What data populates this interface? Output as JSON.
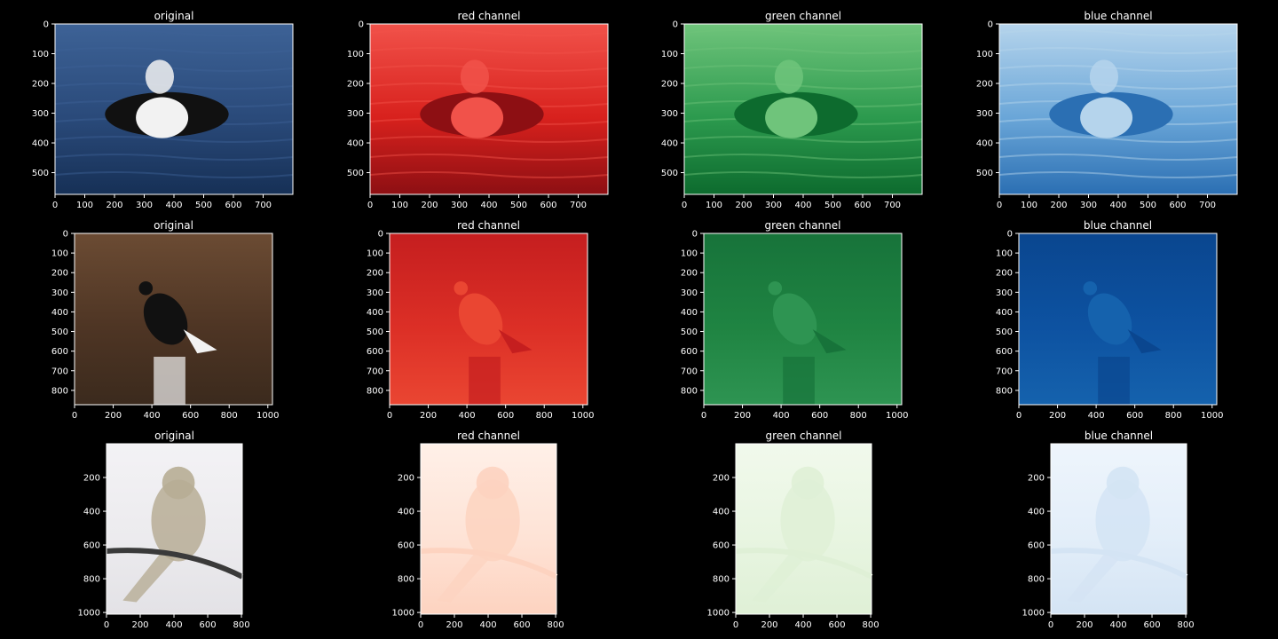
{
  "figure": {
    "background": "#000000",
    "rows": [
      {
        "subject": "duck",
        "x_ticks": [
          "0",
          "100",
          "200",
          "300",
          "400",
          "500",
          "600",
          "700"
        ],
        "y_ticks": [
          "0",
          "100",
          "200",
          "300",
          "400",
          "500"
        ],
        "x_max": 800,
        "y_max": 573,
        "panels": [
          {
            "title": "original",
            "channel": "original"
          },
          {
            "title": "red channel",
            "channel": "red"
          },
          {
            "title": "green channel",
            "channel": "green"
          },
          {
            "title": "blue channel",
            "channel": "blue"
          }
        ]
      },
      {
        "subject": "hawk",
        "x_ticks": [
          "0",
          "200",
          "400",
          "600",
          "800",
          "1000"
        ],
        "y_ticks": [
          "0",
          "100",
          "200",
          "300",
          "400",
          "500",
          "600",
          "700",
          "800"
        ],
        "x_max": 1024,
        "y_max": 873,
        "panels": [
          {
            "title": "original",
            "channel": "original"
          },
          {
            "title": "red channel",
            "channel": "red"
          },
          {
            "title": "green channel",
            "channel": "green"
          },
          {
            "title": "blue channel",
            "channel": "blue"
          }
        ]
      },
      {
        "subject": "finch",
        "x_ticks": [
          "0",
          "200",
          "400",
          "600",
          "800"
        ],
        "y_ticks": [
          "200",
          "400",
          "600",
          "800",
          "1000"
        ],
        "x_max": 805,
        "y_max": 1010,
        "panels": [
          {
            "title": "original",
            "channel": "original"
          },
          {
            "title": "red channel",
            "channel": "red"
          },
          {
            "title": "green channel",
            "channel": "green"
          },
          {
            "title": "blue channel",
            "channel": "blue"
          }
        ]
      }
    ],
    "colors": {
      "duck_original": [
        "#2a4a7a",
        "#163056",
        "#3d6296"
      ],
      "duck_red": [
        "#d8211d",
        "#8d0f13",
        "#f1524a"
      ],
      "duck_green": [
        "#2c9a4e",
        "#0d6b2e",
        "#6fc47b"
      ],
      "duck_blue": [
        "#6aa6d8",
        "#2b6fb3",
        "#b5d4ec"
      ],
      "hawk_original": [
        "#4e3524",
        "#3b2a1d",
        "#6b4b33"
      ],
      "hawk_red": [
        "#dc2f26",
        "#ea4632",
        "#c51e1f"
      ],
      "hawk_green": [
        "#1f8442",
        "#2e9452",
        "#17733a"
      ],
      "hawk_blue": [
        "#0d52a1",
        "#1562ad",
        "#0a468f"
      ],
      "finch_original": [
        "#ecebee",
        "#e3e2e6",
        "#f3f2f5"
      ],
      "finch_red": [
        "#fee3d6",
        "#fdd3c0",
        "#fff0e8"
      ],
      "finch_green": [
        "#e8f5e1",
        "#dff0d6",
        "#f1f9ec"
      ],
      "finch_blue": [
        "#e3eef9",
        "#d4e4f4",
        "#eef5fc"
      ]
    }
  }
}
